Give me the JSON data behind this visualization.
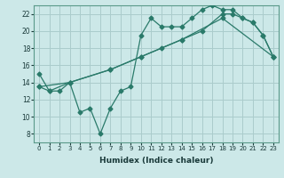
{
  "title": "",
  "xlabel": "Humidex (Indice chaleur)",
  "background_color": "#cce8e8",
  "grid_color": "#aacccc",
  "line_color": "#2a7a6a",
  "xlim": [
    -0.5,
    23.5
  ],
  "ylim": [
    7,
    23
  ],
  "yticks": [
    8,
    10,
    12,
    14,
    16,
    18,
    20,
    22
  ],
  "xticks": [
    0,
    1,
    2,
    3,
    4,
    5,
    6,
    7,
    8,
    9,
    10,
    11,
    12,
    13,
    14,
    15,
    16,
    17,
    18,
    19,
    20,
    21,
    22,
    23
  ],
  "line1_x": [
    0,
    1,
    2,
    3,
    4,
    5,
    6,
    7,
    8,
    9,
    10,
    11,
    12,
    13,
    14,
    15,
    16,
    17,
    18,
    19,
    20,
    21,
    22,
    23
  ],
  "line1_y": [
    15,
    13,
    13,
    14,
    10.5,
    11,
    8,
    11,
    13,
    13.5,
    19.5,
    21.5,
    20.5,
    20.5,
    20.5,
    21.5,
    22.5,
    23,
    22.5,
    22.5,
    21.5,
    21,
    19.5,
    17
  ],
  "line2_x": [
    0,
    1,
    3,
    7,
    10,
    12,
    14,
    16,
    18,
    19,
    20,
    21,
    22,
    23
  ],
  "line2_y": [
    13.5,
    13,
    14,
    15.5,
    17,
    18,
    19,
    20,
    22,
    22,
    21.5,
    21,
    19.5,
    17
  ],
  "line3_x": [
    0,
    3,
    7,
    10,
    14,
    18,
    23
  ],
  "line3_y": [
    13.5,
    14,
    15.5,
    17,
    19,
    21.5,
    17
  ]
}
